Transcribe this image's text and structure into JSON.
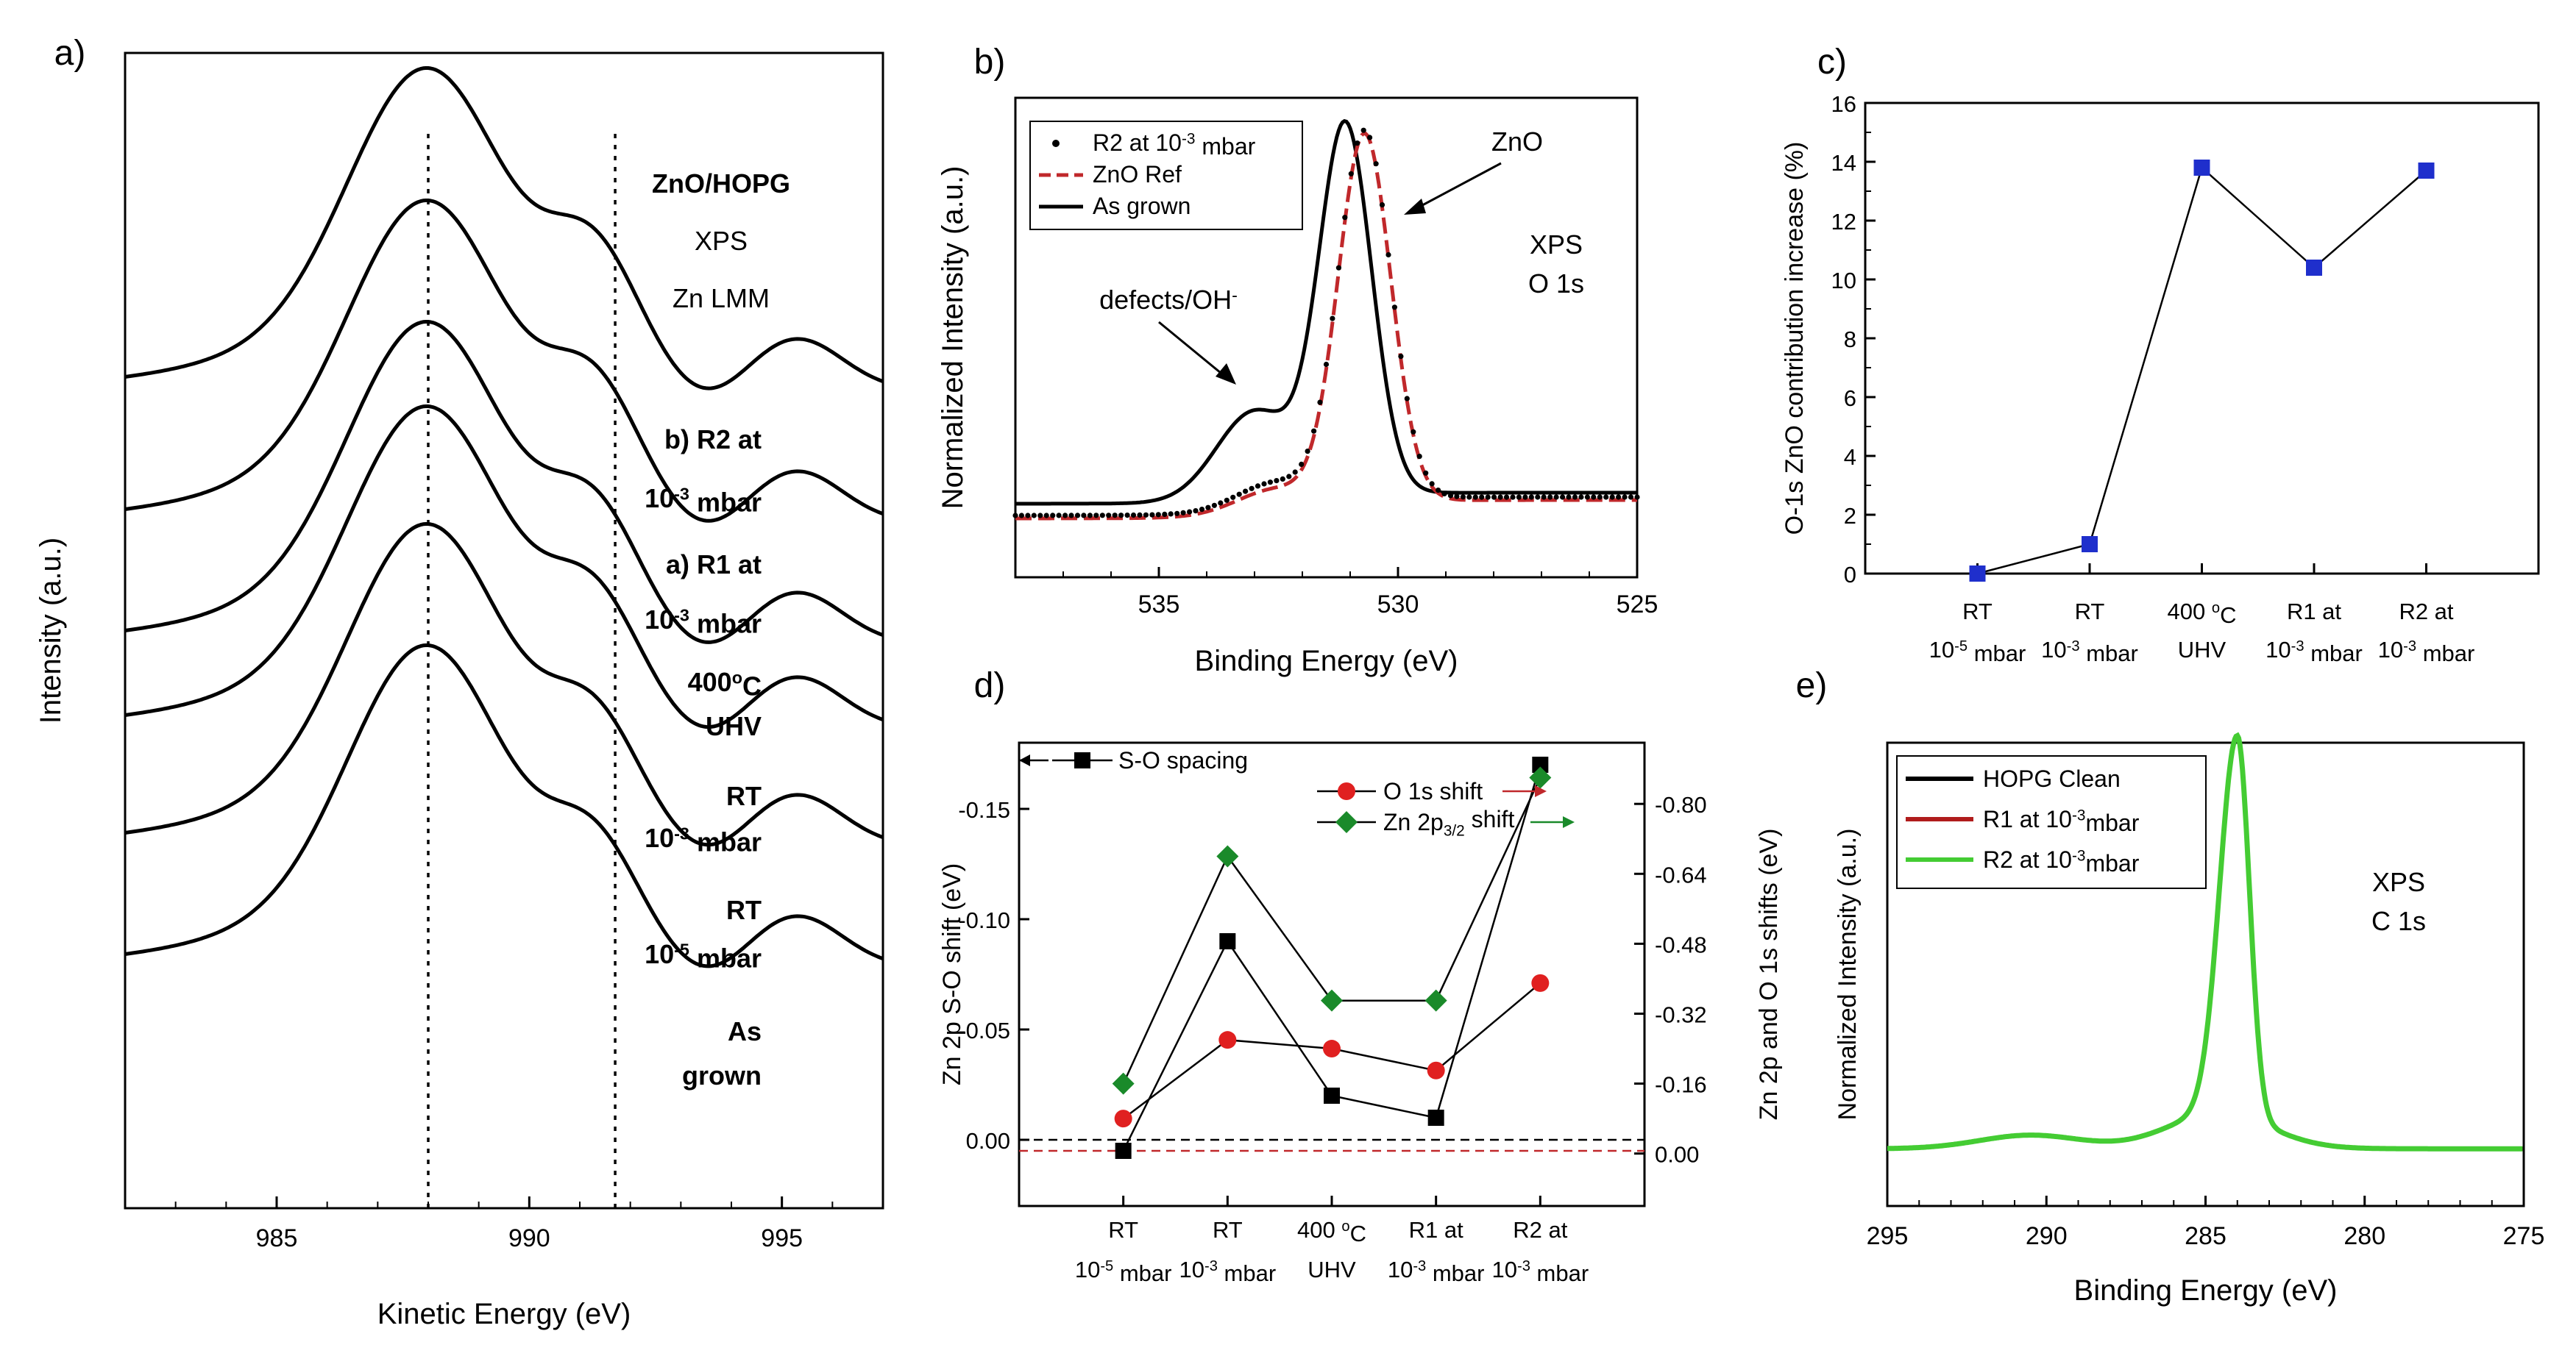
{
  "chart_data": [
    {
      "id": "a",
      "panel_label": "a)",
      "type": "line",
      "title_lines": [
        "ZnO/HOPG",
        "XPS",
        "Zn LMM"
      ],
      "xlabel": "Kinetic Energy (eV)",
      "ylabel": "Intensity (a.u.)",
      "xlim": [
        982,
        997
      ],
      "xticks": [
        985,
        990,
        995
      ],
      "xtick_labels": [
        "985",
        "990",
        "995"
      ],
      "reference_lines": [
        988,
        991.7
      ],
      "series": [
        {
          "name": "b) R2 at 10-3 mbar",
          "label_line1": "b) R2 at",
          "label_line2": "10",
          "label_exp": "-3",
          "label_unit": " mbar",
          "offset": 5
        },
        {
          "name": "a) R1 at 10-3 mbar",
          "label_line1": "a) R1 at",
          "label_line2": "10",
          "label_exp": "-3",
          "label_unit": " mbar",
          "offset": 4
        },
        {
          "name": "400°C UHV",
          "label_line1": "400",
          "label_line1_sup": "o",
          "label_line1_tail": "C",
          "label_line2": "UHV",
          "offset": 3
        },
        {
          "name": "RT 10-3 mbar",
          "label_line1": "RT",
          "label_line2": "10",
          "label_exp": "-3",
          "label_unit": " mbar",
          "offset": 2
        },
        {
          "name": "RT 10-5 mbar",
          "label_line1": "RT",
          "label_line2": "10",
          "label_exp": "-5",
          "label_unit": " mbar",
          "offset": 1
        },
        {
          "name": "As grown",
          "label_line1": "As",
          "label_line2": "grown",
          "offset": 0
        }
      ]
    },
    {
      "id": "b",
      "panel_label": "b)",
      "type": "line",
      "xlabel": "Binding Energy (eV)",
      "ylabel": "Normalized Intensity (a.u.)",
      "xlim": [
        538,
        525
      ],
      "xticks": [
        535,
        530,
        525
      ],
      "xtick_labels": [
        "535",
        "530",
        "525"
      ],
      "annotations": [
        "ZnO",
        "defects/OH",
        "XPS",
        "O 1s"
      ],
      "annotation_sup": "-",
      "legend": [
        {
          "label": "R2 at 10",
          "exp": "-3",
          "tail": " mbar",
          "style": "dots",
          "color": "#000000"
        },
        {
          "label": "ZnO Ref",
          "style": "dashed",
          "color": "#c0282b"
        },
        {
          "label": "As grown",
          "style": "solid",
          "color": "#000000"
        }
      ],
      "series": [
        {
          "name": "R2 at 10-3 mbar",
          "peak": 530.7
        },
        {
          "name": "ZnO Ref",
          "peak": 530.7
        },
        {
          "name": "As grown",
          "peak": 531.1
        }
      ]
    },
    {
      "id": "c",
      "panel_label": "c)",
      "type": "line",
      "ylabel": "O-1s ZnO contribution increase (%)",
      "ylim": [
        0,
        16
      ],
      "yticks": [
        "0",
        "2",
        "4",
        "6",
        "8",
        "10",
        "12",
        "14",
        "16"
      ],
      "categories": [
        {
          "l1": "RT",
          "l2": "10",
          "exp": "-5",
          "tail": " mbar"
        },
        {
          "l1": "RT",
          "l2": "10",
          "exp": "-3",
          "tail": " mbar"
        },
        {
          "l1": "400 ",
          "l1_sup": "o",
          "l1_tail": "C",
          "l2": "UHV"
        },
        {
          "l1": "R1 at",
          "l2": "10",
          "exp": "-3",
          "tail": " mbar"
        },
        {
          "l1": "R2 at",
          "l2": "10",
          "exp": "-3",
          "tail": " mbar"
        }
      ],
      "values": [
        0.0,
        1.0,
        13.8,
        10.4,
        13.7
      ],
      "marker_color": "#1f2fcc"
    },
    {
      "id": "d",
      "panel_label": "d)",
      "type": "line",
      "ylabel_left": "Zn 2p S-O shift (eV)",
      "ylabel_right": "Zn 2p and O 1s shifts (eV)",
      "ylim_left": [
        0.03,
        -0.18
      ],
      "yticks_left": [
        "0.00",
        "-0.05",
        "-0.10",
        "-0.15"
      ],
      "yticks_left_values": [
        0.0,
        -0.05,
        -0.1,
        -0.15
      ],
      "ylim_right": [
        0.12,
        -0.94
      ],
      "yticks_right": [
        "0.00",
        "-0.16",
        "-0.32",
        "-0.48",
        "-0.64",
        "-0.80"
      ],
      "yticks_right_values": [
        0.0,
        -0.16,
        -0.32,
        -0.48,
        -0.64,
        -0.8
      ],
      "categories": [
        {
          "l1": "RT",
          "l2": "10",
          "exp": "-5",
          "tail": " mbar"
        },
        {
          "l1": "RT",
          "l2": "10",
          "exp": "-3",
          "tail": " mbar"
        },
        {
          "l1": "400 ",
          "l1_sup": "o",
          "l1_tail": "C",
          "l2": "UHV"
        },
        {
          "l1": "R1 at",
          "l2": "10",
          "exp": "-3",
          "tail": " mbar"
        },
        {
          "l1": "R2 at",
          "l2": "10",
          "exp": "-3",
          "tail": " mbar"
        }
      ],
      "reference_lines_left": [
        0.0,
        0.005
      ],
      "series": [
        {
          "name": "S-O spacing",
          "axis": "left",
          "marker": "square",
          "color": "#000000",
          "values": [
            0.005,
            -0.09,
            -0.02,
            -0.01,
            -0.17
          ]
        },
        {
          "name": "O 1s shift",
          "axis": "right",
          "marker": "circle",
          "color": "#e02020",
          "values": [
            -0.08,
            -0.26,
            -0.24,
            -0.19,
            -0.39
          ]
        },
        {
          "name": "Zn 2p3/2 shift",
          "label_main": "Zn 2p",
          "label_sub": "3/2",
          "label_tail": " shift",
          "axis": "right",
          "marker": "diamond",
          "color": "#1a8a2a",
          "values": [
            -0.16,
            -0.68,
            -0.35,
            -0.35,
            -0.86
          ]
        }
      ]
    },
    {
      "id": "e",
      "panel_label": "e)",
      "type": "line",
      "xlabel": "Binding Energy (eV)",
      "ylabel": "Normalized Intensity (a.u.)",
      "xlim": [
        295,
        275
      ],
      "xticks": [
        295,
        290,
        285,
        280,
        275
      ],
      "xtick_labels": [
        "295",
        "290",
        "285",
        "280",
        "275"
      ],
      "annotations": [
        "XPS",
        "C 1s"
      ],
      "legend": [
        {
          "label": "HOPG Clean",
          "color": "#000000"
        },
        {
          "label": "R1 at 10",
          "exp": "-3",
          "tail": "mbar",
          "color": "#b01c1c"
        },
        {
          "label": "R2 at 10",
          "exp": "-3",
          "tail": "mbar",
          "color": "#44cc33"
        }
      ],
      "series": [
        {
          "name": "HOPG Clean",
          "peak": 284.0
        },
        {
          "name": "R1 at 10-3mbar",
          "peak": 284.0
        },
        {
          "name": "R2 at 10-3mbar",
          "peak": 284.0
        }
      ]
    }
  ]
}
